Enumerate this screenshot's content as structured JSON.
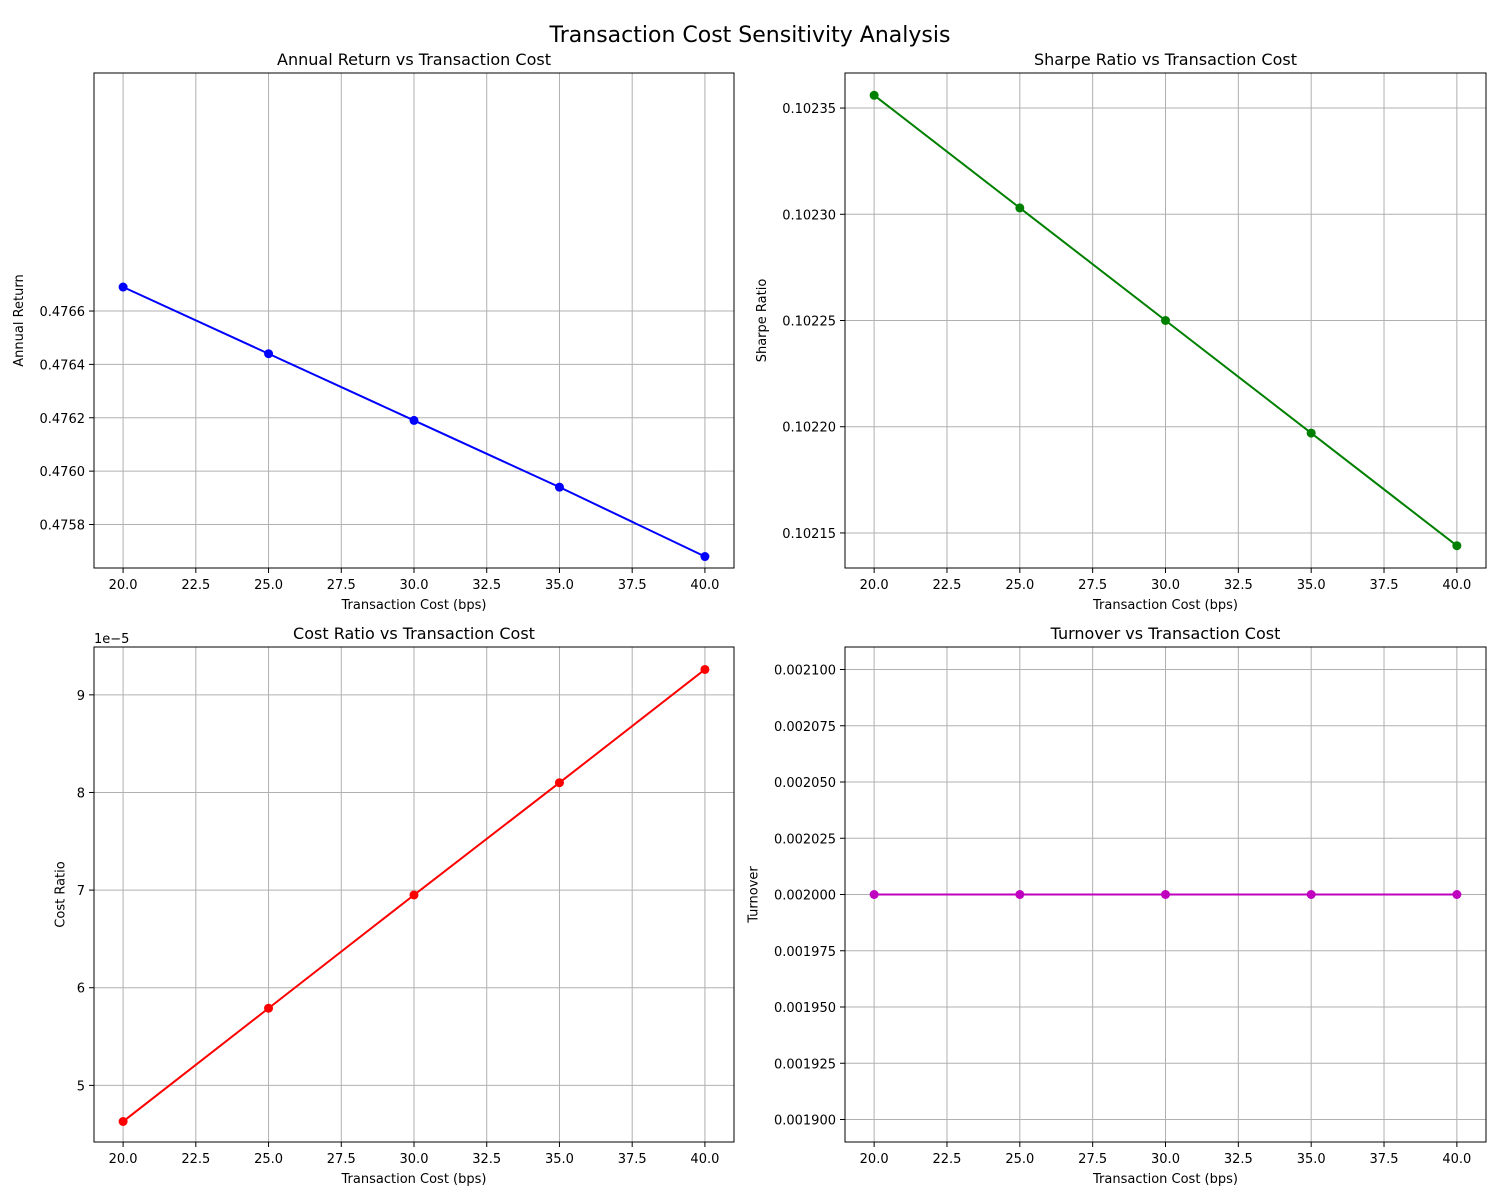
{
  "figure": {
    "suptitle": "Transaction Cost Sensitivity Analysis"
  },
  "chart_data": [
    {
      "type": "line",
      "title": "Annual Return vs Transaction Cost",
      "xlabel": "Transaction Cost (bps)",
      "ylabel": "Annual Return",
      "color": "#0000ff",
      "x": [
        20,
        25,
        30,
        35,
        40
      ],
      "y": [
        0.47669,
        0.47644,
        0.47619,
        0.47594,
        0.47568
      ],
      "xlim": [
        19,
        41
      ],
      "ylim": [
        0.475637,
        0.477492
      ],
      "xticks": [
        20.0,
        22.5,
        25.0,
        27.5,
        30.0,
        32.5,
        35.0,
        37.5,
        40.0
      ],
      "xtick_labels": [
        "20.0",
        "22.5",
        "25.0",
        "27.5",
        "30.0",
        "32.5",
        "35.0",
        "37.5",
        "40.0"
      ],
      "yticks": [
        0.4758,
        0.476,
        0.4762,
        0.4764,
        0.4766
      ],
      "ytick_labels": [
        "0.4758",
        "0.4760",
        "0.4762",
        "0.4764",
        "0.4766"
      ],
      "offset_label": "",
      "grid": true
    },
    {
      "type": "line",
      "title": "Sharpe Ratio vs Transaction Cost",
      "xlabel": "Transaction Cost (bps)",
      "ylabel": "Sharpe Ratio",
      "color": "#008000",
      "x": [
        20,
        25,
        30,
        35,
        40
      ],
      "y": [
        0.102356,
        0.102303,
        0.10225,
        0.102197,
        0.102144
      ],
      "xlim": [
        19,
        41
      ],
      "ylim": [
        0.1021335,
        0.1023665
      ],
      "xticks": [
        20.0,
        22.5,
        25.0,
        27.5,
        30.0,
        32.5,
        35.0,
        37.5,
        40.0
      ],
      "xtick_labels": [
        "20.0",
        "22.5",
        "25.0",
        "27.5",
        "30.0",
        "32.5",
        "35.0",
        "37.5",
        "40.0"
      ],
      "yticks": [
        0.10215,
        0.1022,
        0.10225,
        0.1023,
        0.10235
      ],
      "ytick_labels": [
        "0.10215",
        "0.10220",
        "0.10225",
        "0.10230",
        "0.10235"
      ],
      "offset_label": "",
      "grid": true
    },
    {
      "type": "line",
      "title": "Cost Ratio vs Transaction Cost",
      "xlabel": "Transaction Cost (bps)",
      "ylabel": "Cost Ratio",
      "color": "#ff0000",
      "x": [
        20,
        25,
        30,
        35,
        40
      ],
      "y": [
        4.63e-05,
        5.79e-05,
        6.95e-05,
        8.1e-05,
        9.26e-05
      ],
      "xlim": [
        19,
        41
      ],
      "ylim": [
        4.42e-05,
        9.49e-05
      ],
      "xticks": [
        20.0,
        22.5,
        25.0,
        27.5,
        30.0,
        32.5,
        35.0,
        37.5,
        40.0
      ],
      "xtick_labels": [
        "20.0",
        "22.5",
        "25.0",
        "27.5",
        "30.0",
        "32.5",
        "35.0",
        "37.5",
        "40.0"
      ],
      "yticks": [
        5e-05,
        6e-05,
        7e-05,
        8e-05,
        9e-05
      ],
      "ytick_labels": [
        "5",
        "6",
        "7",
        "8",
        "9"
      ],
      "offset_label": "1e−5",
      "grid": true
    },
    {
      "type": "line",
      "title": "Turnover vs Transaction Cost",
      "xlabel": "Transaction Cost (bps)",
      "ylabel": "Turnover",
      "color": "#bf00bf",
      "x": [
        20,
        25,
        30,
        35,
        40
      ],
      "y": [
        0.002,
        0.002,
        0.002,
        0.002,
        0.002
      ],
      "xlim": [
        19,
        41
      ],
      "ylim": [
        0.00189,
        0.00211
      ],
      "xticks": [
        20.0,
        22.5,
        25.0,
        27.5,
        30.0,
        32.5,
        35.0,
        37.5,
        40.0
      ],
      "xtick_labels": [
        "20.0",
        "22.5",
        "25.0",
        "27.5",
        "30.0",
        "32.5",
        "35.0",
        "37.5",
        "40.0"
      ],
      "yticks": [
        0.0019,
        0.001925,
        0.00195,
        0.001975,
        0.002,
        0.002025,
        0.00205,
        0.002075,
        0.0021
      ],
      "ytick_labels": [
        "0.001900",
        "0.001925",
        "0.001950",
        "0.001975",
        "0.002000",
        "0.002025",
        "0.002050",
        "0.002075",
        "0.002100"
      ],
      "offset_label": "",
      "grid": true
    }
  ]
}
